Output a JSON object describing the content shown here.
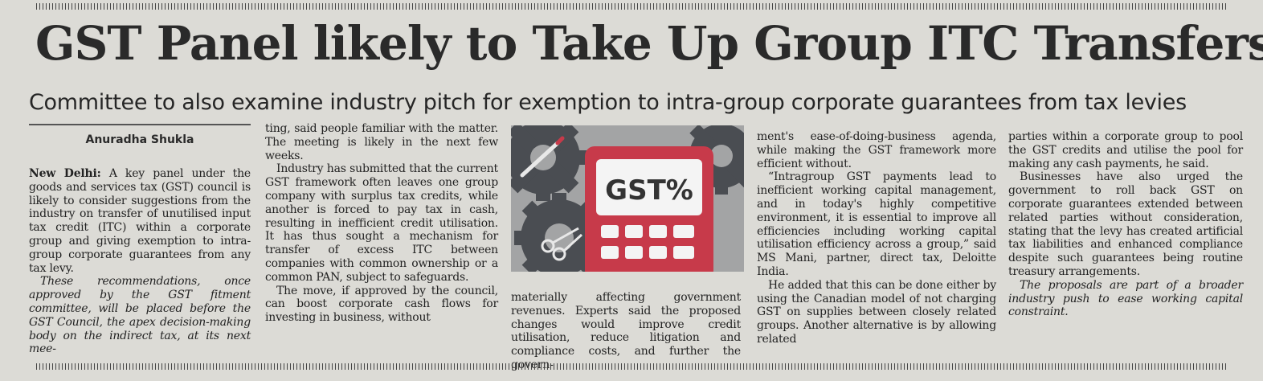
{
  "article": {
    "headline": "GST Panel likely to Take Up Group ITC Transfers",
    "subheadline": "Committee to also examine industry pitch for exemption to intra-group corporate guarantees from tax levies",
    "byline": "Anuradha Shukla",
    "illustration": {
      "label": "GST%",
      "icons": [
        "gear-icon",
        "calculator-icon",
        "pen-icon",
        "scissors-icon"
      ],
      "colors": {
        "calculator": "#c73a4a",
        "display": "#f4f4f4",
        "gears": "#4a4d52",
        "background": "#9a9b9c"
      }
    },
    "col1": {
      "dateline": "New Delhi:",
      "p1": "A key panel under the goods and services tax (GST) council is likely to consider suggestions from the industry on transfer of unutilised input tax credit (ITC) within a corporate group and giving exemption to intra-group corporate guarantees from any tax levy.",
      "p2": "These recommendations, once approved by the GST fitment committee, will be placed before the GST Council, the apex decision-making body on the indirect tax, at its next mee-"
    },
    "col2": {
      "p1": "ting, said people familiar with the matter. The meeting is likely in the next few weeks.",
      "p2": "Industry has submitted that the current GST framework often leaves one group company with surplus tax credits, while another is forced to pay tax in cash, resulting in inefficient credit utilisation. It has thus sought a mechanism for transfer of excess ITC between companies with common ownership or a common PAN, subject to safeguards.",
      "p3": "The move, if approved by the council, can boost corporate cash flows for investing in business, without"
    },
    "col3": {
      "p1": "materially affecting government revenues. Experts said the proposed changes would improve credit utilisation, reduce litigation and compliance costs, and further the govern-"
    },
    "col4": {
      "p1": "ment's ease-of-doing-business agenda, while making the GST framework more efficient without.",
      "p2": "“Intragroup GST payments lead to inefficient working capital management, and in today's highly competitive environment, it is essential to improve all efficiencies including working capital utilisation efficiency across a group,” said MS Mani, partner, direct tax, Deloitte India.",
      "p3": "He added that this can be done either by using the Canadian model of not charging GST on supplies between closely related groups. Another alternative is by allowing related"
    },
    "col5": {
      "p1": "parties within a corporate group to pool the GST credits and utilise the pool for making any cash payments, he said.",
      "p2": "Businesses have also urged the government to roll back GST on corporate guarantees extended between related parties without consideration, stating that the levy has created artificial tax liabilities and enhanced compliance despite such guarantees being routine treasury arrangements.",
      "p3": "The proposals are part of a broader industry push to ease working capital constraint."
    }
  }
}
